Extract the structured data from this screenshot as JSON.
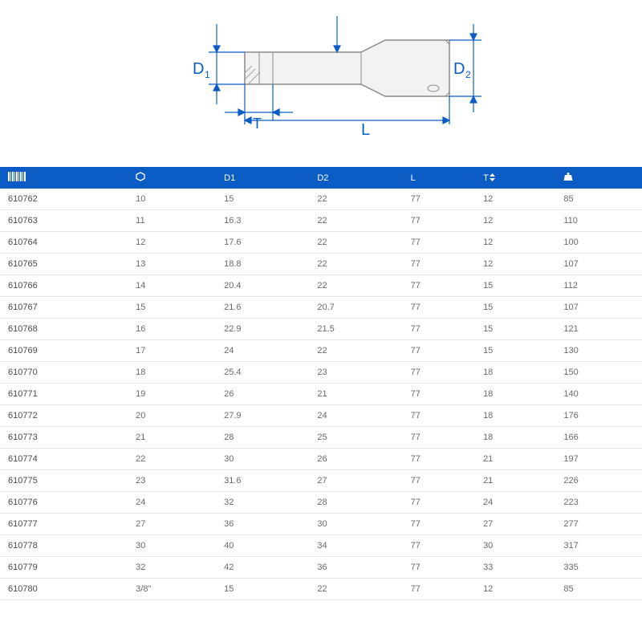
{
  "diagram": {
    "labels": {
      "d1": "D",
      "d1_sub": "1",
      "d2": "D",
      "d2_sub": "2",
      "t": "T",
      "l": "L"
    },
    "stroke_blue": "#0b5cc4",
    "stroke_gray": "#8a8a8a",
    "body_fill": "#f2f2f2",
    "body_stroke": "#8a8a8a",
    "label_color": "#0b5cc4",
    "font_size": 20
  },
  "table": {
    "header_bg": "#0b5cc4",
    "header_text": "#ffffff",
    "row_border": "#e5e5e5",
    "cell_text": "#6a6a6a",
    "columns": [
      "code",
      "hex",
      "D1",
      "D2",
      "L",
      "T",
      "weight"
    ],
    "header_labels": [
      "",
      "⬡",
      "D1",
      "D2",
      "L",
      "T↕",
      "⬢"
    ],
    "rows": [
      [
        "610762",
        "10",
        "15",
        "22",
        "77",
        "12",
        "85"
      ],
      [
        "610763",
        "11",
        "16.3",
        "22",
        "77",
        "12",
        "110"
      ],
      [
        "610764",
        "12",
        "17.6",
        "22",
        "77",
        "12",
        "100"
      ],
      [
        "610765",
        "13",
        "18.8",
        "22",
        "77",
        "12",
        "107"
      ],
      [
        "610766",
        "14",
        "20.4",
        "22",
        "77",
        "15",
        "112"
      ],
      [
        "610767",
        "15",
        "21.6",
        "20.7",
        "77",
        "15",
        "107"
      ],
      [
        "610768",
        "16",
        "22.9",
        "21.5",
        "77",
        "15",
        "121"
      ],
      [
        "610769",
        "17",
        "24",
        "22",
        "77",
        "15",
        "130"
      ],
      [
        "610770",
        "18",
        "25.4",
        "23",
        "77",
        "18",
        "150"
      ],
      [
        "610771",
        "19",
        "26",
        "21",
        "77",
        "18",
        "140"
      ],
      [
        "610772",
        "20",
        "27.9",
        "24",
        "77",
        "18",
        "176"
      ],
      [
        "610773",
        "21",
        "28",
        "25",
        "77",
        "18",
        "166"
      ],
      [
        "610774",
        "22",
        "30",
        "26",
        "77",
        "21",
        "197"
      ],
      [
        "610775",
        "23",
        "31.6",
        "27",
        "77",
        "21",
        "226"
      ],
      [
        "610776",
        "24",
        "32",
        "28",
        "77",
        "24",
        "223"
      ],
      [
        "610777",
        "27",
        "36",
        "30",
        "77",
        "27",
        "277"
      ],
      [
        "610778",
        "30",
        "40",
        "34",
        "77",
        "30",
        "317"
      ],
      [
        "610779",
        "32",
        "42",
        "36",
        "77",
        "33",
        "335"
      ],
      [
        "610780",
        "3/8\"",
        "15",
        "22",
        "77",
        "12",
        "85"
      ]
    ]
  }
}
